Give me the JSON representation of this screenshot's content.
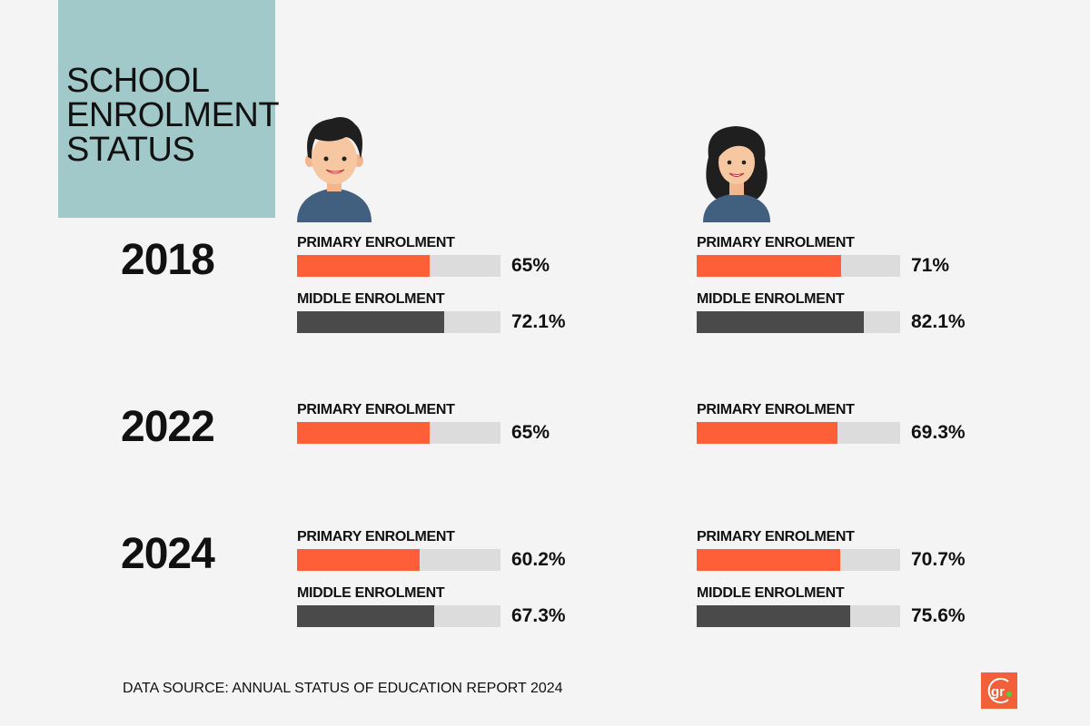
{
  "title_lines": [
    "SCHOOL",
    "ENROLMENT",
    "STATUS"
  ],
  "source": "DATA SOURCE: ANNUAL STATUS OF EDUCATION REPORT 2024",
  "logo_text": "gr",
  "colors": {
    "primary": "#ff5f38",
    "middle": "#4a4a4a",
    "track": "#dcdcdc",
    "title_bg": "#a2c9ca"
  },
  "icons": {
    "left": "boy-avatar",
    "right": "girl-avatar"
  },
  "chart_data": {
    "type": "bar",
    "orientation": "horizontal",
    "xlim": [
      0,
      100
    ],
    "unit": "%",
    "columns": [
      "boy",
      "girl"
    ],
    "groups": [
      {
        "year": "2018",
        "rows": [
          {
            "label": "PRIMARY ENROLMENT",
            "series": "primary",
            "values": [
              65,
              71
            ],
            "labels": [
              "65%",
              "71%"
            ]
          },
          {
            "label": "MIDDLE ENROLMENT",
            "series": "middle",
            "values": [
              72.1,
              82.1
            ],
            "labels": [
              "72.1%",
              "82.1%"
            ]
          }
        ]
      },
      {
        "year": "2022",
        "rows": [
          {
            "label": "PRIMARY ENROLMENT",
            "series": "primary",
            "values": [
              65,
              69.3
            ],
            "labels": [
              "65%",
              "69.3%"
            ]
          }
        ]
      },
      {
        "year": "2024",
        "rows": [
          {
            "label": "PRIMARY ENROLMENT",
            "series": "primary",
            "values": [
              60.2,
              70.7
            ],
            "labels": [
              "60.2%",
              "70.7%"
            ]
          },
          {
            "label": "MIDDLE ENROLMENT",
            "series": "middle",
            "values": [
              67.3,
              75.6
            ],
            "labels": [
              "67.3%",
              "75.6%"
            ]
          }
        ]
      }
    ]
  }
}
